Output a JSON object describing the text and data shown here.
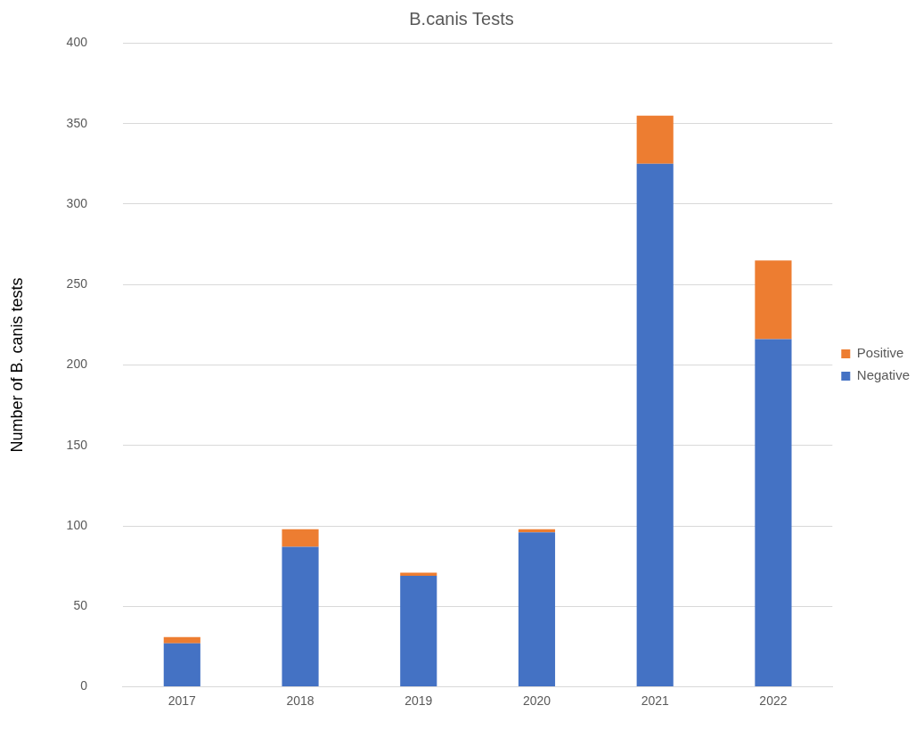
{
  "chart_data": {
    "type": "bar",
    "title": "B.canis Tests",
    "ylabel": "Number of B. canis tests",
    "categories": [
      "2017",
      "2018",
      "2019",
      "2020",
      "2021",
      "2022"
    ],
    "series": [
      {
        "name": "Negative",
        "color": "#4472c4",
        "values": [
          27,
          87,
          69,
          96,
          325,
          216
        ]
      },
      {
        "name": "Positive",
        "color": "#ed7d31",
        "values": [
          4,
          11,
          2,
          2,
          30,
          49
        ]
      }
    ],
    "stacked": true,
    "ylim": [
      0,
      400
    ],
    "yticks": [
      0,
      50,
      100,
      150,
      200,
      250,
      300,
      350,
      400
    ],
    "grid": "y",
    "legend": "right"
  }
}
